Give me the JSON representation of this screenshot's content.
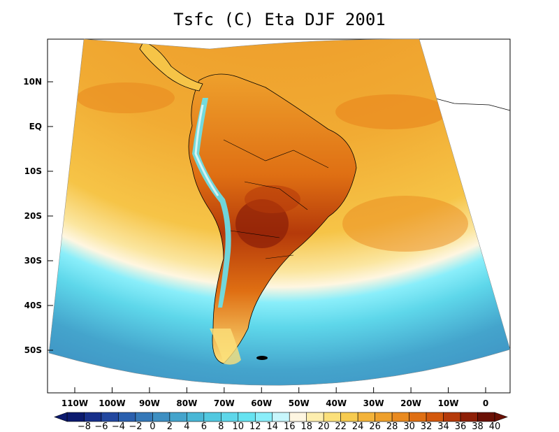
{
  "title": "Tsfc (C) Eta DJF 2001",
  "lat_axis": {
    "labels": [
      "10N",
      "EQ",
      "10S",
      "20S",
      "30S",
      "40S",
      "50S"
    ],
    "values": [
      10,
      0,
      -10,
      -20,
      -30,
      -40,
      -50
    ]
  },
  "lon_axis": {
    "labels": [
      "110W",
      "100W",
      "90W",
      "80W",
      "70W",
      "60W",
      "50W",
      "40W",
      "30W",
      "20W",
      "10W",
      "0"
    ],
    "values": [
      -110,
      -100,
      -90,
      -80,
      -70,
      -60,
      -50,
      -40,
      -30,
      -20,
      -10,
      0
    ]
  },
  "colorbar": {
    "labels": [
      "−8",
      "−6",
      "−4",
      "−2",
      "0",
      "2",
      "4",
      "6",
      "8",
      "10",
      "12",
      "14",
      "16",
      "18",
      "20",
      "22",
      "24",
      "26",
      "28",
      "30",
      "32",
      "34",
      "36",
      "38",
      "40"
    ],
    "colors": [
      "#0b1a6e",
      "#172f8a",
      "#22479f",
      "#2a5fae",
      "#3578b8",
      "#3e8fc2",
      "#44a4cc",
      "#49b7d6",
      "#52c8e0",
      "#5ed7ea",
      "#66e3f1",
      "#8aeefa",
      "#c7f6fc",
      "#fef6e1",
      "#fdeeae",
      "#fbe07a",
      "#f7cb4f",
      "#f3b33a",
      "#eea02c",
      "#e98a1f",
      "#df6f13",
      "#d3580d",
      "#b53a0a",
      "#8e2008",
      "#6a1005"
    ]
  },
  "colors": {
    "ocean_warm": "#efa62c",
    "ocean_mid": "#f4b93e",
    "ocean_pale": "#fbe9a2",
    "ocean_cool": "#5ed7ea",
    "ocean_cold": "#3e8fc2",
    "land_hot": "#b5460e",
    "andes_cold": "#52c8e0"
  }
}
